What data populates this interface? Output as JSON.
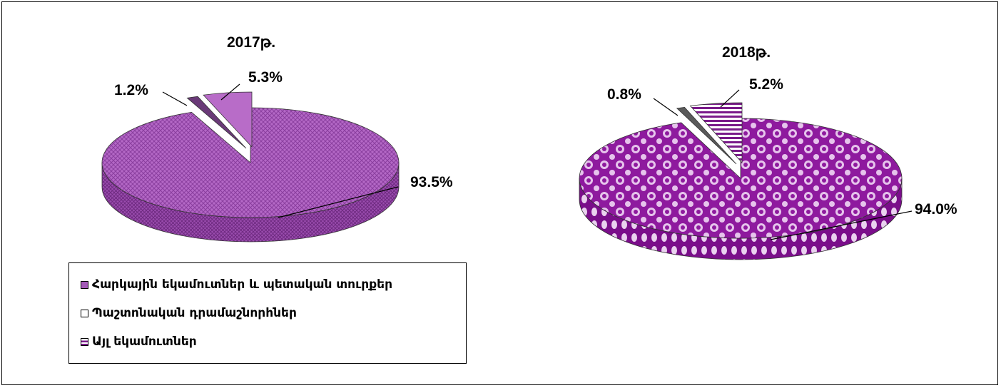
{
  "chart_data": [
    {
      "type": "pie",
      "title": "2017թ.",
      "labels": [
        "Հարկային եկամուտներ և պետական տուրքեր",
        "Պաշտոնական դրամաշնորհներ",
        "Այլ եկամուտներ"
      ],
      "values": [
        93.5,
        1.2,
        5.3
      ],
      "value_labels": [
        "93.5%",
        "1.2%",
        "5.3%"
      ],
      "colors": [
        "#a45ab8",
        "#6a3a78",
        "#b86cc8"
      ]
    },
    {
      "type": "pie",
      "title": "2018թ.",
      "labels": [
        "Հարկային եկամուտներ և պետական տուրքեր",
        "Պաշտոնական դրամաշնորհներ",
        "Այլ եկամուտներ"
      ],
      "values": [
        94.0,
        0.8,
        5.2
      ],
      "value_labels": [
        "94.0%",
        "0.8%",
        "5.2%"
      ],
      "colors": [
        "#8a1a9a",
        "#5a5a5a",
        "#7a1a8a"
      ]
    }
  ],
  "legend": {
    "placement": "bottom-left",
    "items": [
      {
        "label": "Հարկային եկամուտներ և պետական տուրքեր"
      },
      {
        "label": "Պաշտոնական դրամաշնորհներ"
      },
      {
        "label": "Այլ եկամուտներ"
      }
    ]
  }
}
